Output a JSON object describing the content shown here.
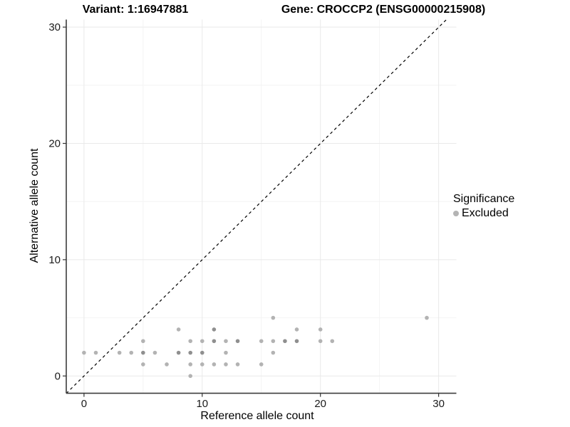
{
  "chart_data": {
    "type": "scatter",
    "title_left": "Variant: 1:16947881",
    "title_right": "Gene: CROCCP2 (ENSG00000215908)",
    "xlabel": "Reference allele count",
    "ylabel": "Alternative allele count",
    "xlim": [
      -1.5,
      31.5
    ],
    "ylim": [
      -1.5,
      30.7
    ],
    "xticks": [
      "0",
      "10",
      "20",
      "30"
    ],
    "yticks": [
      "0",
      "10",
      "20",
      "30"
    ],
    "xtick_values": [
      0,
      10,
      20,
      30
    ],
    "ytick_values": [
      0,
      10,
      20,
      30
    ],
    "minor_tick_values": [
      5,
      15,
      25
    ],
    "grid": "on",
    "identity_line": {
      "style": "dashed",
      "equation": "y = x"
    },
    "legend": {
      "position": "right",
      "title": "Significance",
      "items": [
        {
          "label": "Excluded",
          "color": "#b4b4b4"
        }
      ]
    },
    "colors": {
      "point_light": "#b3b3b3",
      "point_dark": "#8f8f8f",
      "grid_major": "#e9e9e9",
      "grid_minor": "#f4f4f4",
      "axis_line": "#3c3c3c",
      "dashed_line": "#000000"
    },
    "series": [
      {
        "name": "Excluded",
        "points": [
          {
            "x": 9,
            "y": 0
          },
          {
            "x": 5,
            "y": 1
          },
          {
            "x": 7,
            "y": 1
          },
          {
            "x": 9,
            "y": 1
          },
          {
            "x": 10,
            "y": 1
          },
          {
            "x": 11,
            "y": 1
          },
          {
            "x": 12,
            "y": 1
          },
          {
            "x": 13,
            "y": 1
          },
          {
            "x": 15,
            "y": 1
          },
          {
            "x": 0,
            "y": 2
          },
          {
            "x": 1,
            "y": 2
          },
          {
            "x": 3,
            "y": 2
          },
          {
            "x": 4,
            "y": 2
          },
          {
            "x": 5,
            "y": 2,
            "d": 1
          },
          {
            "x": 6,
            "y": 2
          },
          {
            "x": 8,
            "y": 2,
            "d": 1
          },
          {
            "x": 9,
            "y": 2,
            "d": 1
          },
          {
            "x": 10,
            "y": 2,
            "d": 1
          },
          {
            "x": 12,
            "y": 2
          },
          {
            "x": 16,
            "y": 2
          },
          {
            "x": 5,
            "y": 3
          },
          {
            "x": 9,
            "y": 3
          },
          {
            "x": 10,
            "y": 3
          },
          {
            "x": 11,
            "y": 3,
            "d": 1
          },
          {
            "x": 12,
            "y": 3
          },
          {
            "x": 13,
            "y": 3,
            "d": 1
          },
          {
            "x": 15,
            "y": 3
          },
          {
            "x": 16,
            "y": 3
          },
          {
            "x": 17,
            "y": 3,
            "d": 1
          },
          {
            "x": 18,
            "y": 3,
            "d": 1
          },
          {
            "x": 20,
            "y": 3
          },
          {
            "x": 21,
            "y": 3
          },
          {
            "x": 8,
            "y": 4
          },
          {
            "x": 11,
            "y": 4,
            "d": 1
          },
          {
            "x": 18,
            "y": 4
          },
          {
            "x": 20,
            "y": 4
          },
          {
            "x": 16,
            "y": 5
          },
          {
            "x": 29,
            "y": 5
          }
        ]
      }
    ]
  }
}
